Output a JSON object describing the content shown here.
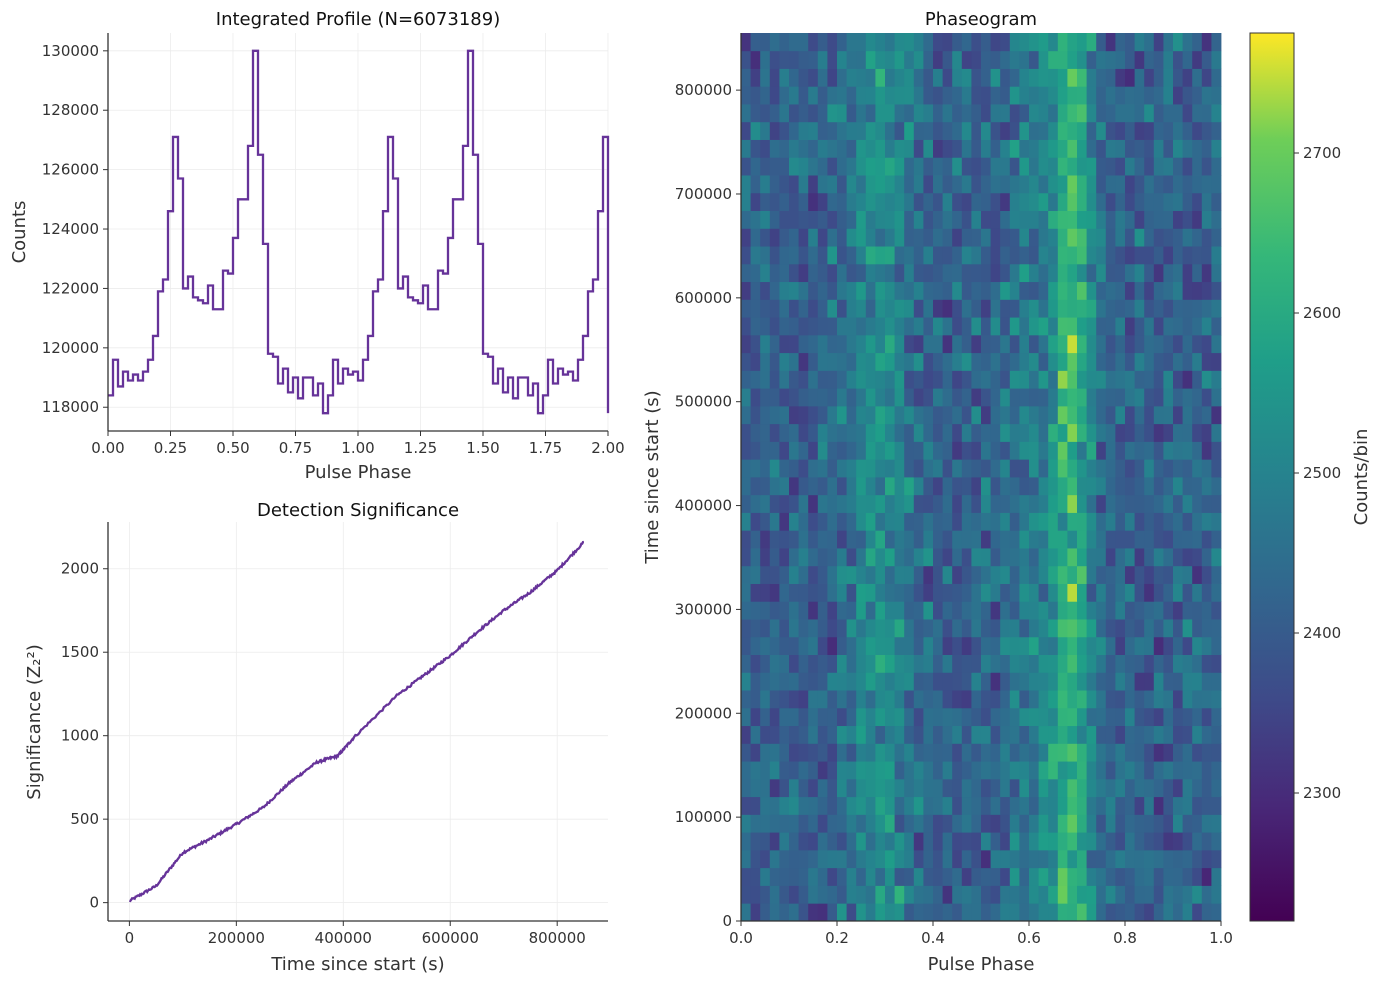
{
  "chart_data": [
    {
      "type": "line",
      "title": "Integrated Profile (N=6073189)",
      "xlabel": "Pulse Phase",
      "ylabel": "Counts",
      "xlim": [
        0,
        2
      ],
      "ylim": [
        117200,
        130600
      ],
      "xticks": [
        "0.00",
        "0.25",
        "0.50",
        "0.75",
        "1.00",
        "1.25",
        "1.50",
        "1.75",
        "2.00"
      ],
      "yticks": [
        "118000",
        "120000",
        "122000",
        "124000",
        "126000",
        "128000",
        "130000"
      ],
      "grid": true,
      "color": "#663399",
      "series": [
        {
          "x": [
            0.0,
            0.02,
            0.04,
            0.06,
            0.08,
            0.1,
            0.12,
            0.14,
            0.16,
            0.18,
            0.2,
            0.22,
            0.24,
            0.26,
            0.28,
            0.3,
            0.32,
            0.34,
            0.36,
            0.38,
            0.4,
            0.42,
            0.44,
            0.46,
            0.48,
            0.5,
            0.52,
            0.54,
            0.56,
            0.58,
            0.6,
            0.62,
            0.64,
            0.66,
            0.68,
            0.7,
            0.72,
            0.74,
            0.76,
            0.78,
            0.8,
            0.82,
            0.84,
            0.86,
            0.88,
            0.9,
            0.92,
            0.94,
            0.96,
            0.98,
            1.0,
            1.02,
            1.04,
            1.06,
            1.08,
            1.1,
            1.12,
            1.14,
            1.16,
            1.18,
            1.2,
            1.22,
            1.24,
            1.26,
            1.28,
            1.3,
            1.32,
            1.34,
            1.36,
            1.38,
            1.4,
            1.42,
            1.44,
            1.46,
            1.48,
            1.5,
            1.52,
            1.54,
            1.56,
            1.58,
            1.6,
            1.62,
            1.64,
            1.66,
            1.68,
            1.7,
            1.72,
            1.74,
            1.76,
            1.78,
            1.8,
            1.82,
            1.84,
            1.86,
            1.88,
            1.9,
            1.92,
            1.94,
            1.96,
            1.98,
            2.0
          ],
          "y": [
            118400,
            119600,
            118700,
            119200,
            118900,
            119100,
            118900,
            119200,
            119600,
            120400,
            121900,
            122300,
            124600,
            127100,
            125700,
            122000,
            122400,
            121700,
            121600,
            121500,
            122100,
            121300,
            121300,
            122600,
            122500,
            123700,
            125000,
            125000,
            126800,
            130000,
            126500,
            123500,
            119800,
            119700,
            118800,
            119300,
            118500,
            119000,
            118300,
            119000,
            119000,
            118400,
            118800,
            117800,
            118400,
            119600,
            118800,
            119300,
            119100,
            119200,
            118900,
            119600,
            120400,
            121900,
            122300,
            124600,
            127100,
            125700,
            122000,
            122400,
            121700,
            121600,
            121500,
            122100,
            121300,
            121300,
            122600,
            122500,
            123700,
            125000,
            125000,
            126800,
            130000,
            126500,
            123500,
            119800,
            119700,
            118800,
            119300,
            118500,
            119000,
            118300,
            119000,
            119000,
            118400,
            118800,
            117800,
            118400,
            119600,
            118800,
            119300,
            119100,
            119200,
            118900,
            119600,
            120400,
            121900,
            122300,
            124600,
            127100,
            117800
          ]
        }
      ]
    },
    {
      "type": "line",
      "title": "Detection Significance",
      "xlabel": "Time since start (s)",
      "ylabel": "Significance (Z₂²)",
      "xlim": [
        -40000,
        895000
      ],
      "ylim": [
        -110,
        2280
      ],
      "xticks": [
        "0",
        "200000",
        "400000",
        "600000",
        "800000"
      ],
      "yticks": [
        "0",
        "500",
        "1000",
        "1500",
        "2000"
      ],
      "grid": true,
      "color": "#663399",
      "series": [
        {
          "x": [
            0,
            50000,
            100000,
            150000,
            200000,
            250000,
            300000,
            350000,
            390000,
            420000,
            500000,
            550000,
            600000,
            650000,
            700000,
            750000,
            800000,
            850000
          ],
          "y": [
            10,
            100,
            300,
            380,
            470,
            570,
            720,
            840,
            880,
            990,
            1240,
            1360,
            1480,
            1620,
            1750,
            1860,
            1990,
            2160
          ]
        }
      ]
    },
    {
      "type": "heatmap",
      "title": "Phaseogram",
      "xlabel": "Pulse Phase",
      "ylabel": "Time since start (s)",
      "xlim": [
        0,
        1
      ],
      "ylim": [
        0,
        855000
      ],
      "xticks": [
        "0.0",
        "0.2",
        "0.4",
        "0.6",
        "0.8",
        "1.0"
      ],
      "yticks": [
        "0",
        "100000",
        "200000",
        "300000",
        "400000",
        "500000",
        "600000",
        "700000",
        "800000"
      ],
      "colormap": "viridis",
      "n_phase_bins": 50,
      "n_time_bins": 50,
      "value_range": [
        2220,
        2775
      ],
      "pulse_peaks_phase": [
        0.29,
        0.69
      ],
      "colorbar": {
        "label": "Counts/bin",
        "ticks": [
          "2300",
          "2400",
          "2500",
          "2600",
          "2700"
        ],
        "tick_values": [
          2300,
          2400,
          2500,
          2600,
          2700
        ]
      }
    }
  ]
}
